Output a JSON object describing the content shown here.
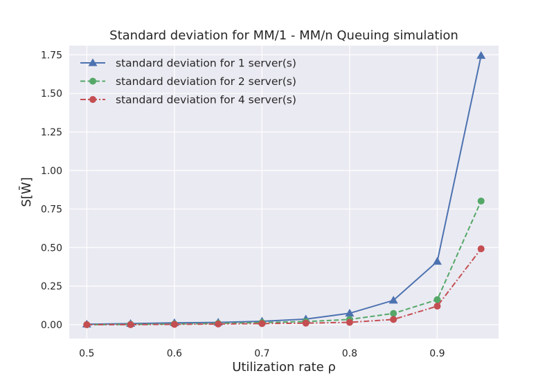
{
  "chart_data": {
    "type": "line",
    "title": "Standard deviation for MM/1 - MM/n Queuing simulation",
    "xlabel": "Utilization rate ρ",
    "ylabel": "S[W̄]",
    "xlim": [
      0.48,
      0.97
    ],
    "ylim": [
      -0.09,
      1.81
    ],
    "xticks": [
      0.5,
      0.6,
      0.7,
      0.8,
      0.9
    ],
    "xtick_labels": [
      "0.5",
      "0.6",
      "0.7",
      "0.8",
      "0.9"
    ],
    "yticks": [
      0.0,
      0.25,
      0.5,
      0.75,
      1.0,
      1.25,
      1.5,
      1.75
    ],
    "ytick_labels": [
      "0.00",
      "0.25",
      "0.50",
      "0.75",
      "1.00",
      "1.25",
      "1.50",
      "1.75"
    ],
    "grid": true,
    "legend_position": "top-left",
    "x": [
      0.5,
      0.55,
      0.6,
      0.65,
      0.7,
      0.75,
      0.8,
      0.85,
      0.9,
      0.95
    ],
    "series": [
      {
        "name": "standard deviation for 1 server(s)",
        "values": [
          0.003,
          0.007,
          0.012,
          0.015,
          0.022,
          0.036,
          0.074,
          0.158,
          0.41,
          1.745
        ],
        "color": "#4c72b0",
        "linestyle": "solid",
        "marker": "triangle"
      },
      {
        "name": "standard deviation for 2 server(s)",
        "values": [
          0.0,
          0.002,
          0.004,
          0.008,
          0.014,
          0.02,
          0.034,
          0.073,
          0.162,
          0.802
        ],
        "color": "#55a868",
        "linestyle": "dashed",
        "marker": "circle"
      },
      {
        "name": "standard deviation for 4 server(s)",
        "values": [
          0.0,
          0.0,
          0.002,
          0.004,
          0.007,
          0.01,
          0.015,
          0.034,
          0.12,
          0.492
        ],
        "color": "#c44e52",
        "linestyle": "dashdot",
        "marker": "circle"
      }
    ]
  }
}
